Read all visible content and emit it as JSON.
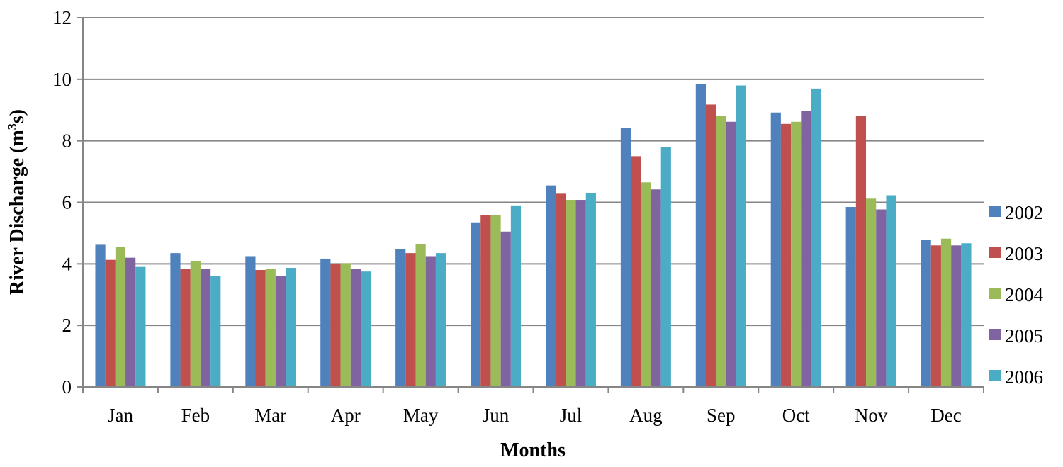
{
  "chart_data": {
    "type": "bar",
    "title": "",
    "xlabel": "Months",
    "ylabel_main": "River Discharge (m",
    "ylabel_sup": "3",
    "ylabel_tail": "s)",
    "ylim": [
      0,
      12
    ],
    "yticks": [
      "0",
      "2",
      "4",
      "6",
      "8",
      "10",
      "12"
    ],
    "grid": true,
    "legend_position": "right",
    "categories": [
      "Jan",
      "Feb",
      "Mar",
      "Apr",
      "May",
      "Jun",
      "Jul",
      "Aug",
      "Sep",
      "Oct",
      "Nov",
      "Dec"
    ],
    "series": [
      {
        "name": "2002",
        "color": "#4F81BD",
        "values": [
          4.62,
          4.35,
          4.25,
          4.17,
          4.48,
          5.35,
          6.55,
          8.42,
          9.85,
          8.92,
          5.85,
          4.78
        ]
      },
      {
        "name": "2003",
        "color": "#C0504D",
        "values": [
          4.13,
          3.83,
          3.8,
          4.0,
          4.35,
          5.58,
          6.28,
          7.5,
          9.18,
          8.55,
          8.8,
          4.6
        ]
      },
      {
        "name": "2004",
        "color": "#9BBB59",
        "values": [
          4.55,
          4.1,
          3.83,
          4.02,
          4.63,
          5.58,
          6.08,
          6.65,
          8.8,
          8.62,
          6.12,
          4.82
        ]
      },
      {
        "name": "2005",
        "color": "#8064A2",
        "values": [
          4.2,
          3.83,
          3.6,
          3.83,
          4.25,
          5.05,
          6.08,
          6.42,
          8.62,
          8.97,
          5.77,
          4.6
        ]
      },
      {
        "name": "2006",
        "color": "#4BACC6",
        "values": [
          3.9,
          3.6,
          3.87,
          3.75,
          4.35,
          5.9,
          6.3,
          7.8,
          9.8,
          9.7,
          6.23,
          4.67
        ]
      }
    ]
  }
}
